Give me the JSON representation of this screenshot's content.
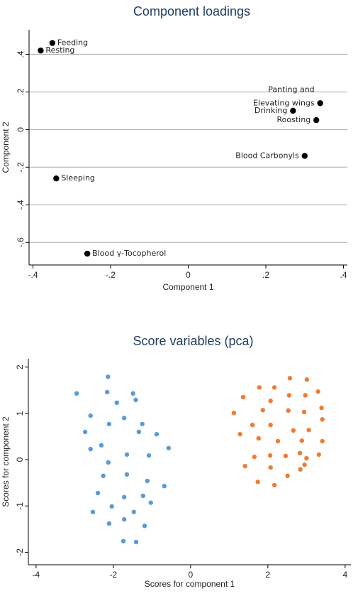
{
  "chart_data": [
    {
      "type": "scatter",
      "title": "Component loadings",
      "xlabel": "Component 1",
      "ylabel": "Component 2",
      "color": "#000000",
      "grid": true,
      "xlim": [
        -0.41,
        0.41
      ],
      "ylim": [
        -0.72,
        0.53
      ],
      "xticks": [
        {
          "value": -0.4,
          "label": "-.4"
        },
        {
          "value": -0.2,
          "label": "-.2"
        },
        0,
        {
          "value": 0.2,
          "label": ".2"
        },
        {
          "value": 0.4,
          "label": ".4"
        }
      ],
      "yticks": [
        {
          "value": -0.6,
          "label": "-.6"
        },
        {
          "value": -0.4,
          "label": "-.4"
        },
        {
          "value": -0.2,
          "label": "-.2"
        },
        0,
        {
          "value": 0.2,
          "label": ".2"
        },
        {
          "value": 0.4,
          "label": ".4"
        }
      ],
      "labels": [
        "Feeding",
        "Resting",
        "Panting and\nElevating wings",
        "Drinking",
        "Roosting",
        "Blood Carbonyls",
        "Sleeping",
        "Blood γ-Tocopherol"
      ],
      "x": [
        -0.35,
        -0.38,
        0.34,
        0.27,
        0.33,
        0.3,
        -0.34,
        -0.26
      ],
      "values": [
        0.46,
        0.42,
        0.14,
        0.1,
        0.05,
        -0.14,
        -0.26,
        -0.66
      ]
    },
    {
      "type": "scatter",
      "title": "Score variables (pca)",
      "xlabel": "Scores for component 1",
      "ylabel": "Scores for component 2",
      "grid": false,
      "xlim": [
        -4.2,
        4.15
      ],
      "ylim": [
        -2.27,
        2.18
      ],
      "xticks": [
        -4,
        -2,
        0,
        2,
        4
      ],
      "yticks": [
        -2,
        -1,
        0,
        1,
        2
      ],
      "series": [
        {
          "color": "#5b9bd5",
          "x": [
            -2.95,
            -2.14,
            -2.16,
            -1.49,
            -1.42,
            -2.59,
            -1.91,
            -2.73,
            -1.72,
            -2.11,
            -1.34,
            -2.31,
            -2.59,
            -1.25,
            -0.88,
            -0.57,
            -1.65,
            -1.08,
            -2.13,
            -2.26,
            -1.65,
            -2.4,
            -1.12,
            -0.68,
            -1.72,
            -1.23,
            -2.53,
            -2.04,
            -1.03,
            -1.47,
            -2.11,
            -1.72,
            -1.19,
            -1.74,
            -1.41
          ],
          "values": [
            1.43,
            1.79,
            1.46,
            1.43,
            1.29,
            0.95,
            1.23,
            0.6,
            0.9,
            0.77,
            0.6,
            0.31,
            0.23,
            0.77,
            0.55,
            0.25,
            0.11,
            0.09,
            -0.06,
            -0.35,
            -0.32,
            -0.72,
            -0.46,
            -0.57,
            -0.81,
            -0.78,
            -1.13,
            -1.01,
            -0.93,
            -1.13,
            -1.38,
            -1.29,
            -1.43,
            -1.76,
            -1.78
          ]
        },
        {
          "color": "#ed7d31",
          "x": [
            2.57,
            3.01,
            1.78,
            2.17,
            3.3,
            1.36,
            2.55,
            2.07,
            2.97,
            1.12,
            1.87,
            2.53,
            3.39,
            1.6,
            2.07,
            2.94,
            3.41,
            2.66,
            3.06,
            1.28,
            1.76,
            2.26,
            2.88,
            3.41,
            1.65,
            2.06,
            2.46,
            2.83,
            3.32,
            3.0,
            1.41,
            2.07,
            2.95,
            2.84,
            2.51,
            1.74,
            2.17
          ],
          "values": [
            1.76,
            1.73,
            1.56,
            1.56,
            1.47,
            1.35,
            1.39,
            1.27,
            1.39,
            1.01,
            1.07,
            1.06,
            1.12,
            0.75,
            0.75,
            1.03,
            0.87,
            0.63,
            0.64,
            0.55,
            0.46,
            0.4,
            0.41,
            0.4,
            0.06,
            0.09,
            0.08,
            0.14,
            0.11,
            0.03,
            -0.14,
            -0.17,
            -0.11,
            -0.21,
            -0.35,
            -0.48,
            -0.55
          ]
        }
      ]
    }
  ]
}
